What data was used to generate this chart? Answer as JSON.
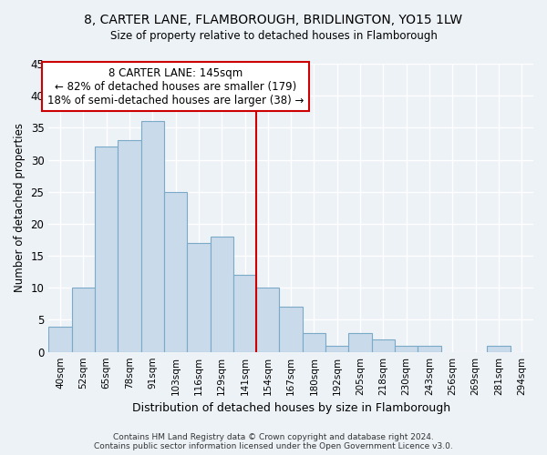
{
  "title": "8, CARTER LANE, FLAMBOROUGH, BRIDLINGTON, YO15 1LW",
  "subtitle": "Size of property relative to detached houses in Flamborough",
  "xlabel": "Distribution of detached houses by size in Flamborough",
  "ylabel": "Number of detached properties",
  "categories": [
    "40sqm",
    "52sqm",
    "65sqm",
    "78sqm",
    "91sqm",
    "103sqm",
    "116sqm",
    "129sqm",
    "141sqm",
    "154sqm",
    "167sqm",
    "180sqm",
    "192sqm",
    "205sqm",
    "218sqm",
    "230sqm",
    "243sqm",
    "256sqm",
    "269sqm",
    "281sqm",
    "294sqm"
  ],
  "values": [
    4,
    10,
    32,
    33,
    36,
    25,
    17,
    18,
    12,
    10,
    7,
    3,
    1,
    3,
    2,
    1,
    1,
    0,
    0,
    1,
    0
  ],
  "bar_color": "#c9daea",
  "bar_edgecolor": "#7aaac8",
  "highlight_index": 8,
  "annotation_text": "8 CARTER LANE: 145sqm\n← 82% of detached houses are smaller (179)\n18% of semi-detached houses are larger (38) →",
  "annotation_box_color": "#ffffff",
  "annotation_box_edgecolor": "#cc0000",
  "vline_color": "#cc0000",
  "ylim": [
    0,
    45
  ],
  "background_color": "#edf2f7",
  "grid_color": "#ffffff",
  "footer": "Contains HM Land Registry data © Crown copyright and database right 2024.\nContains public sector information licensed under the Open Government Licence v3.0."
}
